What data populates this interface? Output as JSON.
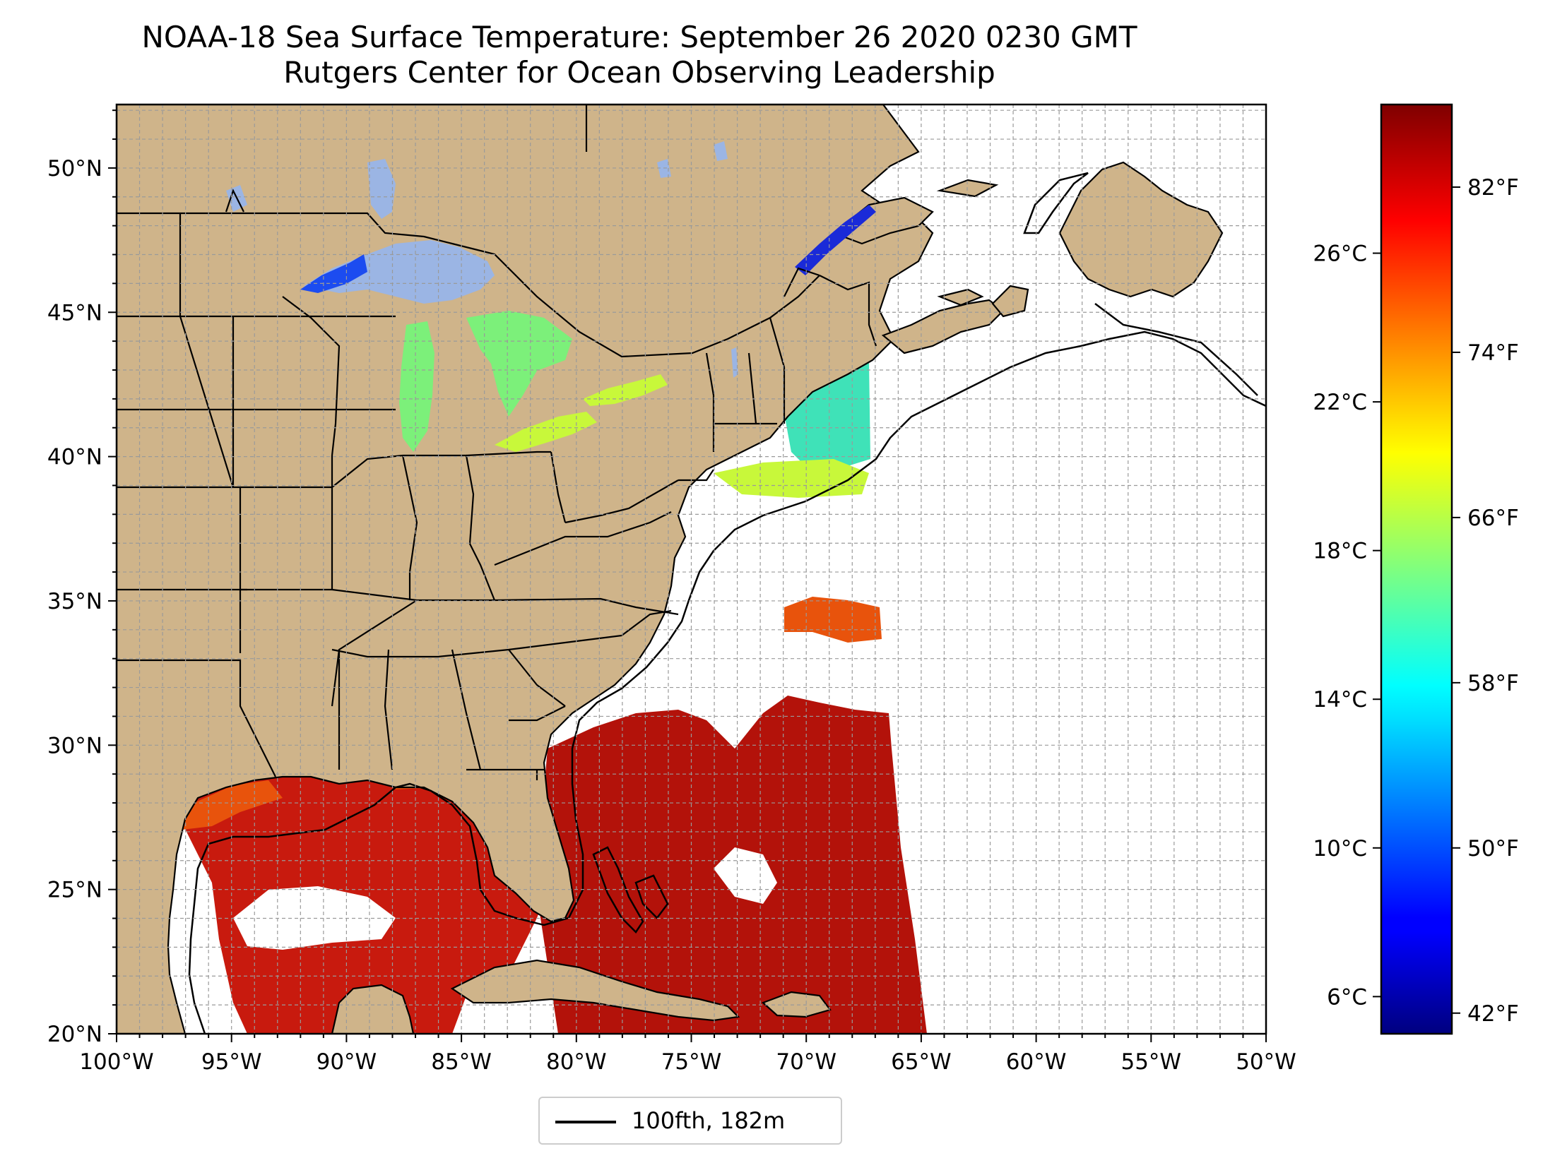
{
  "title": {
    "line1": "NOAA-18 Sea Surface Temperature: September 26 2020 0230 GMT",
    "line2": "Rutgers Center for Ocean Observing Leadership"
  },
  "map": {
    "lon_range": [
      -100,
      -50
    ],
    "lat_range": [
      20,
      52.2
    ],
    "lon_ticks": [
      {
        "value": -100,
        "label": "100°W"
      },
      {
        "value": -95,
        "label": "95°W"
      },
      {
        "value": -90,
        "label": "90°W"
      },
      {
        "value": -85,
        "label": "85°W"
      },
      {
        "value": -80,
        "label": "80°W"
      },
      {
        "value": -75,
        "label": "75°W"
      },
      {
        "value": -70,
        "label": "70°W"
      },
      {
        "value": -65,
        "label": "65°W"
      },
      {
        "value": -60,
        "label": "60°W"
      },
      {
        "value": -55,
        "label": "55°W"
      },
      {
        "value": -50,
        "label": "50°W"
      }
    ],
    "lat_ticks": [
      {
        "value": 20,
        "label": "20°N"
      },
      {
        "value": 25,
        "label": "25°N"
      },
      {
        "value": 30,
        "label": "30°N"
      },
      {
        "value": 35,
        "label": "35°N"
      },
      {
        "value": 40,
        "label": "40°N"
      },
      {
        "value": 45,
        "label": "45°N"
      },
      {
        "value": 50,
        "label": "50°N"
      }
    ],
    "grid": "dashed, every 1°",
    "colors": {
      "land": "#cfb48a",
      "lakes": "#9bb5e4",
      "ocean": "#ffffff",
      "gulf_sst": "#c81a0e",
      "gulf_sst_coastal": "#e8530c",
      "atlantic_sst": "#b3120a",
      "northeast_sst": "#3fe2b8",
      "great_lakes_sst": "#7cf07a",
      "lake_erie_sst": "#c8f83a",
      "lake_superior_sst": "#1c4cf0",
      "st_lawrence_sst": "#1a2ad8",
      "isobath": "#000000",
      "border": "#000000"
    }
  },
  "legend": {
    "label": "100fth, 182m",
    "position": "below map, center"
  },
  "colorbar": {
    "colormap": "jet",
    "range_celsius": [
      5,
      30
    ],
    "celsius_ticks": [
      {
        "value": 6,
        "label": "6°C"
      },
      {
        "value": 10,
        "label": "10°C"
      },
      {
        "value": 14,
        "label": "14°C"
      },
      {
        "value": 18,
        "label": "18°C"
      },
      {
        "value": 22,
        "label": "22°C"
      },
      {
        "value": 26,
        "label": "26°C"
      }
    ],
    "fahrenheit_ticks": [
      {
        "value": 42,
        "label": "42°F"
      },
      {
        "value": 50,
        "label": "50°F"
      },
      {
        "value": 58,
        "label": "58°F"
      },
      {
        "value": 66,
        "label": "66°F"
      },
      {
        "value": 74,
        "label": "74°F"
      },
      {
        "value": 82,
        "label": "82°F"
      }
    ]
  }
}
